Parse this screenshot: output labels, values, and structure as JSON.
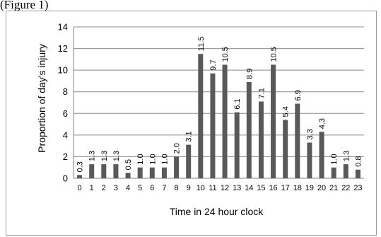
{
  "caption": "(Figure 1)",
  "chart_data": {
    "type": "bar",
    "categories": [
      "0",
      "1",
      "2",
      "3",
      "4",
      "5",
      "6",
      "7",
      "8",
      "9",
      "10",
      "11",
      "12",
      "13",
      "14",
      "15",
      "16",
      "17",
      "18",
      "19",
      "20",
      "21",
      "22",
      "23"
    ],
    "values": [
      0.3,
      1.3,
      1.3,
      1.3,
      0.5,
      1.0,
      1.0,
      1.0,
      2.0,
      3.1,
      11.5,
      9.7,
      10.5,
      6.1,
      8.9,
      7.1,
      10.5,
      5.4,
      6.9,
      3.3,
      4.3,
      1.0,
      1.3,
      0.8
    ],
    "data_labels": [
      "0.3",
      "1.3",
      "1.3",
      "1.3",
      "0.5",
      "1.0",
      "1.0",
      "1.0",
      "2.0",
      "3.1",
      "11.5",
      "9.7",
      "10.5",
      "6.1",
      "8.9",
      "7.1",
      "10.5",
      "5.4",
      "6.9",
      "3.3",
      "4.3",
      "1.0",
      "1.3",
      "0.8"
    ],
    "yticks": [
      "0",
      "2",
      "4",
      "6",
      "8",
      "10",
      "12",
      "14"
    ],
    "ylim": [
      0,
      14
    ],
    "xlabel": "Time in 24 hour clock",
    "ylabel": "Proportion of day's injury",
    "grid": "horizontal",
    "legend": "none",
    "bar_color": "#595959",
    "grid_color": "#8c8c8c"
  }
}
